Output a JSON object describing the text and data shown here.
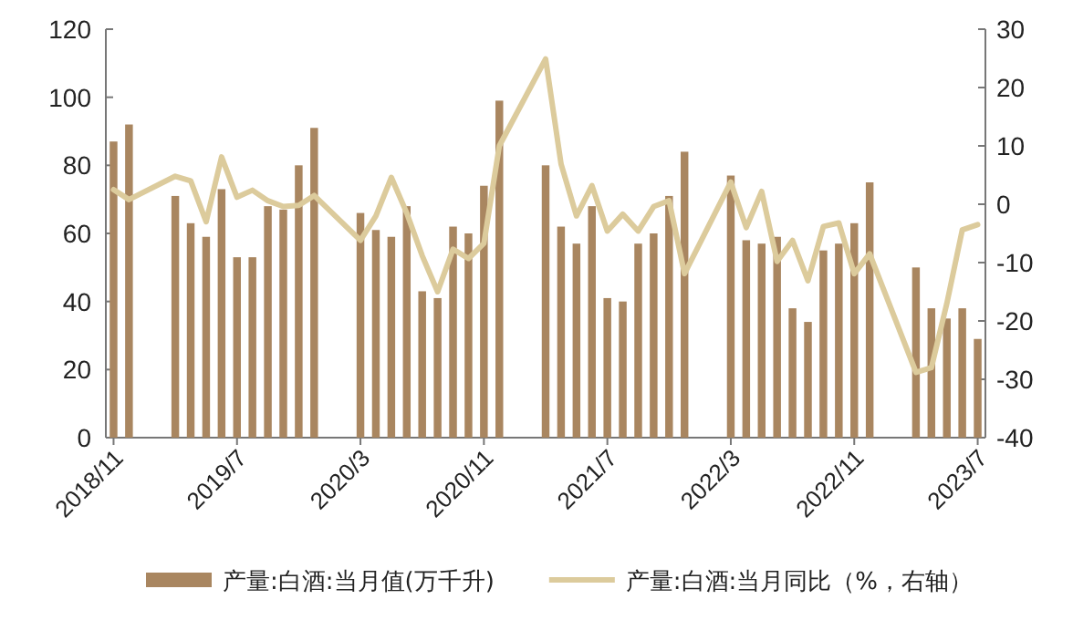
{
  "chart_data": {
    "type": "bar",
    "categories": [
      "2018/11",
      null,
      null,
      null,
      null,
      null,
      null,
      null,
      "2019/7",
      null,
      null,
      null,
      null,
      null,
      null,
      null,
      "2020/3",
      null,
      null,
      null,
      null,
      null,
      null,
      null,
      "2020/11",
      null,
      null,
      null,
      null,
      null,
      null,
      null,
      "2021/7",
      null,
      null,
      null,
      null,
      null,
      null,
      null,
      "2022/3",
      null,
      null,
      null,
      null,
      null,
      null,
      null,
      "2022/11",
      null,
      null,
      null,
      null,
      null,
      null,
      null,
      "2023/7"
    ],
    "series": [
      {
        "name": "产量:白酒:当月值(万千升)",
        "color": "#a98660",
        "values": [
          87,
          92,
          null,
          null,
          71,
          63,
          59,
          73,
          53,
          53,
          68,
          67,
          80,
          91,
          null,
          null,
          66,
          61,
          59,
          68,
          43,
          41,
          62,
          60,
          74,
          99,
          null,
          null,
          80,
          62,
          57,
          68,
          41,
          40,
          57,
          60,
          71,
          84,
          null,
          null,
          77,
          58,
          57,
          59,
          38,
          34,
          55,
          57,
          63,
          75,
          null,
          null,
          50,
          38,
          35,
          38,
          29
        ]
      },
      {
        "name": "产量:白酒:当月同比（%，右轴）",
        "type": "line",
        "axis": "y2",
        "color": "#dccb9c",
        "values": [
          2.5,
          0.8,
          null,
          null,
          4.8,
          4,
          -3,
          8.1,
          1.2,
          2.4,
          0.6,
          -0.4,
          -0.2,
          1.5,
          null,
          null,
          -6.2,
          -2,
          4.6,
          -1.5,
          -8.8,
          -15,
          -7.7,
          -9.3,
          -6.7,
          10,
          null,
          null,
          24.9,
          6.9,
          -2,
          3.2,
          -4.6,
          -1.7,
          -4.6,
          -0.4,
          0.6,
          -11.9,
          null,
          null,
          3.8,
          -4,
          2.2,
          -9.8,
          -6.2,
          -13.1,
          -3.8,
          -3.2,
          -11.9,
          -8.5,
          null,
          null,
          -28.8,
          -28,
          -17,
          -4.4,
          -3.5
        ]
      }
    ],
    "ylim": [
      0,
      120
    ],
    "yticks": [
      0,
      20,
      40,
      60,
      80,
      100,
      120
    ],
    "y2lim": [
      -40,
      30
    ],
    "y2ticks": [
      -40,
      -30,
      -20,
      -10,
      0,
      10,
      20,
      30
    ],
    "legend": "bottom"
  }
}
